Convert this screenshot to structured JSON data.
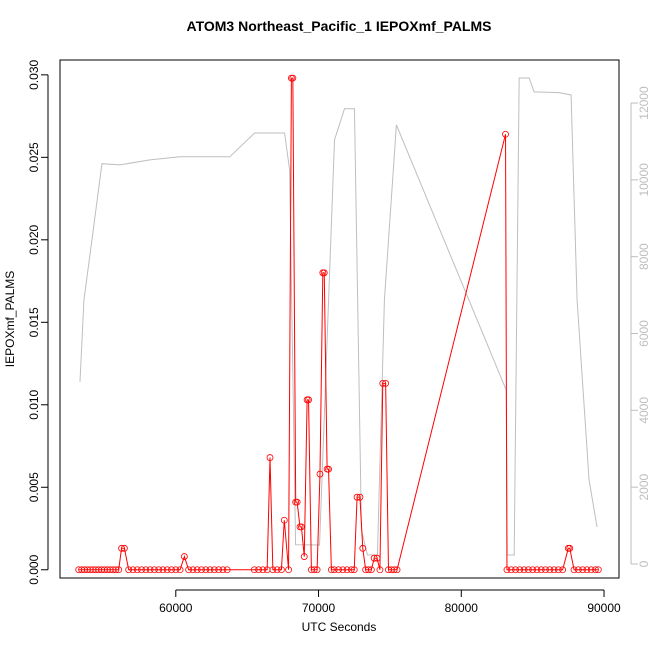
{
  "chart_data": {
    "type": "line",
    "title": "ATOM3 Northeast_Pacific_1 IEPOXmf_PALMS",
    "x_label": "UTC Seconds",
    "y_label": "IEPOXmf_PALMS",
    "xlim": [
      51888,
      91049
    ],
    "xticks": [
      60000,
      70000,
      80000,
      90000
    ],
    "ylim": [
      -0.0005,
      0.0309
    ],
    "yticks": [
      {
        "value": 0,
        "label": "0.000"
      },
      {
        "value": 0.005,
        "label": "0.005"
      },
      {
        "value": 0.01,
        "label": "0.010"
      },
      {
        "value": 0.015,
        "label": "0.015"
      },
      {
        "value": 0.02,
        "label": "0.020"
      },
      {
        "value": 0.025,
        "label": "0.025"
      },
      {
        "value": 0.03,
        "label": "0.030"
      }
    ],
    "y2lim": [
      -365,
      13120
    ],
    "y2ticks": [
      0,
      2000,
      4000,
      6000,
      8000,
      10000,
      12000
    ],
    "y2_color": "#bebebe",
    "series": [
      {
        "color": "#bebebe",
        "axis": "y2",
        "marker": "none",
        "x": [
          53287,
          53566,
          54126,
          54825,
          56084,
          58182,
          60280,
          63776,
          65524,
          67622,
          67972,
          68391,
          70070,
          71119,
          71818,
          72517,
          73007,
          73426,
          74125,
          74615,
          75454,
          83146,
          83216,
          83706,
          84056,
          84755,
          85105,
          86853,
          87692,
          88112,
          88951,
          89510
        ],
        "values": [
          4740,
          6875,
          8440,
          10420,
          10390,
          10520,
          10600,
          10600,
          11220,
          11220,
          10260,
          500,
          495,
          11040,
          11850,
          11850,
          885,
          235,
          235,
          6875,
          11430,
          4530,
          235,
          235,
          12650,
          12650,
          12290,
          12270,
          12210,
          6875,
          2190,
          960
        ]
      },
      {
        "color": "#ff0000",
        "axis": "y",
        "marker": "circle",
        "x": [
          53200,
          53400,
          53600,
          53800,
          54000,
          54200,
          54400,
          54600,
          54800,
          55000,
          55200,
          55400,
          55600,
          55800,
          56000,
          56200,
          56400,
          56700,
          57000,
          57300,
          57600,
          57900,
          58200,
          58500,
          58800,
          59100,
          59400,
          59700,
          60000,
          60300,
          60600,
          60900,
          61200,
          61500,
          61800,
          62100,
          62400,
          62700,
          63000,
          63300,
          63600,
          65500,
          65800,
          66100,
          66400,
          66600,
          66800,
          67100,
          67400,
          67600,
          67900,
          68100,
          68200,
          68400,
          68500,
          68700,
          68800,
          69000,
          69200,
          69300,
          69500,
          69700,
          69900,
          70100,
          70300,
          70400,
          70600,
          70700,
          70900,
          71100,
          71400,
          71700,
          72000,
          72300,
          72500,
          72700,
          72900,
          73100,
          73300,
          73500,
          73700,
          73900,
          74100,
          74300,
          74500,
          74700,
          74900,
          75100,
          75300,
          75500,
          83100,
          83200,
          83500,
          83800,
          84100,
          84400,
          84700,
          85000,
          85300,
          85600,
          85900,
          86200,
          86500,
          86800,
          87100,
          87500,
          87600,
          87900,
          88200,
          88500,
          88800,
          89100,
          89400,
          89600
        ],
        "values": [
          0,
          0,
          0,
          0,
          0,
          0,
          0,
          0,
          0,
          0,
          0,
          0,
          0,
          0,
          0,
          0.0013,
          0.0013,
          0,
          0,
          0,
          0,
          0,
          0,
          0,
          0,
          0,
          0,
          0,
          0,
          0,
          0.0008,
          0,
          0,
          0,
          0,
          0,
          0,
          0,
          0,
          0,
          0,
          0,
          0,
          0,
          0,
          0.0068,
          0,
          0,
          0,
          0.003,
          0,
          0.0298,
          0.0298,
          0.0041,
          0.0041,
          0.0026,
          0.0026,
          0.0008,
          0.0103,
          0.0103,
          0,
          0,
          0,
          0.0058,
          0.018,
          0.018,
          0.0061,
          0.0061,
          0,
          0,
          0,
          0,
          0,
          0,
          0,
          0.0044,
          0.0044,
          0.0013,
          0,
          0,
          0,
          0.0007,
          0.0007,
          0,
          0.0113,
          0.0113,
          0,
          0,
          0,
          0,
          0.0264,
          0,
          0,
          0,
          0,
          0,
          0,
          0,
          0,
          0,
          0,
          0,
          0,
          0,
          0,
          0.0013,
          0.0013,
          0,
          0,
          0,
          0,
          0,
          0,
          0
        ]
      }
    ]
  }
}
